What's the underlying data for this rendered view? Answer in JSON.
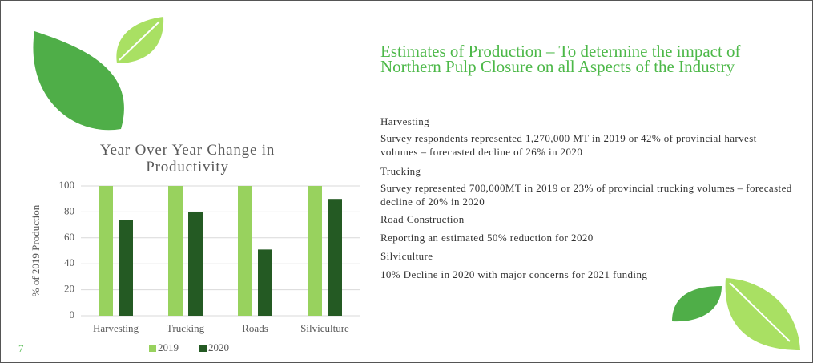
{
  "chart_data": {
    "type": "bar",
    "title": "Year Over Year Change in Productivity",
    "y_label": "% of 2019 Production",
    "categories": [
      "Harvesting",
      "Trucking",
      "Roads",
      "Silviculture"
    ],
    "series": [
      {
        "name": "2019",
        "color": "#98d25e",
        "values": [
          100,
          100,
          100,
          100
        ]
      },
      {
        "name": "2020",
        "color": "#245a23",
        "values": [
          74,
          80,
          51,
          90
        ]
      }
    ],
    "ylim": [
      0,
      100
    ],
    "yticks": [
      0,
      20,
      40,
      60,
      80,
      100
    ],
    "grid": true
  },
  "slide": {
    "heading": "Estimates of Production – To determine the impact of Northern Pulp Closure on all Aspects of the Industry",
    "sections": [
      {
        "title": "Harvesting",
        "text": "Survey respondents represented 1,270,000 MT in 2019 or 42% of provincial harvest volumes – forecasted decline of 26% in 2020"
      },
      {
        "title": "Trucking",
        "text": "Survey represented 700,000MT in 2019 or 23% of provincial trucking volumes – forecasted decline of 20% in 2020"
      },
      {
        "title": "Road Construction",
        "text": "Reporting an estimated 50% reduction for 2020"
      },
      {
        "title": "Silviculture",
        "text": "10% Decline in 2020 with major concerns for 2021 funding"
      }
    ],
    "number": "7"
  }
}
